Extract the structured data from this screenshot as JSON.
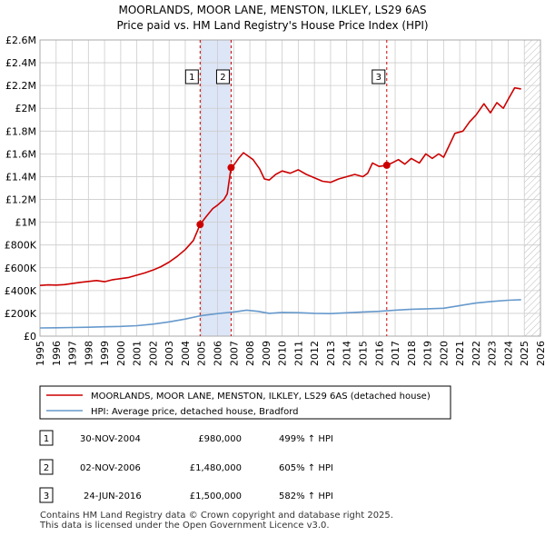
{
  "colors": {
    "property_line": "#cc0000",
    "hpi_line": "#6699cc",
    "highlight": "#dde6f7",
    "marker_line": "#cc0000",
    "grid": "#cccccc"
  },
  "chart_data": {
    "type": "line",
    "title": "MOORLANDS, MOOR LANE, MENSTON, ILKLEY, LS29 6AS",
    "subtitle": "Price paid vs. HM Land Registry's House Price Index (HPI)",
    "xlim": [
      1995,
      2026
    ],
    "ylim": [
      0,
      2600000
    ],
    "x_ticks": [
      "1995",
      "1996",
      "1997",
      "1998",
      "1999",
      "2000",
      "2001",
      "2002",
      "2003",
      "2004",
      "2005",
      "2006",
      "2007",
      "2008",
      "2009",
      "2010",
      "2011",
      "2012",
      "2013",
      "2014",
      "2015",
      "2016",
      "2017",
      "2018",
      "2019",
      "2020",
      "2021",
      "2022",
      "2023",
      "2024",
      "2025",
      "2026"
    ],
    "y_ticks": [
      {
        "value": 0,
        "label": "£0"
      },
      {
        "value": 200000,
        "label": "£200K"
      },
      {
        "value": 400000,
        "label": "£400K"
      },
      {
        "value": 600000,
        "label": "£600K"
      },
      {
        "value": 800000,
        "label": "£800K"
      },
      {
        "value": 1000000,
        "label": "£1M"
      },
      {
        "value": 1200000,
        "label": "£1.2M"
      },
      {
        "value": 1400000,
        "label": "£1.4M"
      },
      {
        "value": 1600000,
        "label": "£1.6M"
      },
      {
        "value": 1800000,
        "label": "£1.8M"
      },
      {
        "value": 2000000,
        "label": "£2M"
      },
      {
        "value": 2200000,
        "label": "£2.2M"
      },
      {
        "value": 2400000,
        "label": "£2.4M"
      },
      {
        "value": 2600000,
        "label": "£2.6M"
      }
    ],
    "highlight_ranges": [
      [
        2004.92,
        2006.84
      ]
    ],
    "projection_start": 2025.0,
    "series": [
      {
        "name": "MOORLANDS, MOOR LANE, MENSTON, ILKLEY, LS29 6AS (detached house)",
        "points": [
          [
            1995.0,
            445000
          ],
          [
            1995.5,
            450000
          ],
          [
            1996.0,
            448000
          ],
          [
            1996.5,
            452000
          ],
          [
            1997.0,
            462000
          ],
          [
            1997.5,
            472000
          ],
          [
            1998.0,
            480000
          ],
          [
            1998.5,
            488000
          ],
          [
            1999.0,
            478000
          ],
          [
            1999.5,
            495000
          ],
          [
            2000.0,
            505000
          ],
          [
            2000.5,
            515000
          ],
          [
            2001.0,
            535000
          ],
          [
            2001.5,
            555000
          ],
          [
            2002.0,
            580000
          ],
          [
            2002.5,
            610000
          ],
          [
            2003.0,
            650000
          ],
          [
            2003.5,
            700000
          ],
          [
            2004.0,
            760000
          ],
          [
            2004.5,
            840000
          ],
          [
            2004.92,
            980000
          ],
          [
            2005.3,
            1050000
          ],
          [
            2005.7,
            1120000
          ],
          [
            2006.0,
            1150000
          ],
          [
            2006.4,
            1200000
          ],
          [
            2006.6,
            1250000
          ],
          [
            2006.84,
            1480000
          ],
          [
            2007.0,
            1500000
          ],
          [
            2007.3,
            1560000
          ],
          [
            2007.6,
            1610000
          ],
          [
            2007.9,
            1580000
          ],
          [
            2008.2,
            1550000
          ],
          [
            2008.6,
            1470000
          ],
          [
            2008.9,
            1380000
          ],
          [
            2009.2,
            1370000
          ],
          [
            2009.6,
            1420000
          ],
          [
            2010.0,
            1450000
          ],
          [
            2010.5,
            1430000
          ],
          [
            2011.0,
            1460000
          ],
          [
            2011.5,
            1420000
          ],
          [
            2012.0,
            1390000
          ],
          [
            2012.5,
            1360000
          ],
          [
            2013.0,
            1350000
          ],
          [
            2013.5,
            1380000
          ],
          [
            2014.0,
            1400000
          ],
          [
            2014.5,
            1420000
          ],
          [
            2015.0,
            1400000
          ],
          [
            2015.3,
            1430000
          ],
          [
            2015.6,
            1520000
          ],
          [
            2016.0,
            1490000
          ],
          [
            2016.48,
            1500000
          ],
          [
            2016.8,
            1520000
          ],
          [
            2017.2,
            1550000
          ],
          [
            2017.6,
            1510000
          ],
          [
            2018.0,
            1560000
          ],
          [
            2018.5,
            1520000
          ],
          [
            2018.9,
            1600000
          ],
          [
            2019.3,
            1560000
          ],
          [
            2019.7,
            1600000
          ],
          [
            2020.0,
            1570000
          ],
          [
            2020.3,
            1660000
          ],
          [
            2020.7,
            1780000
          ],
          [
            2021.2,
            1800000
          ],
          [
            2021.6,
            1880000
          ],
          [
            2022.0,
            1940000
          ],
          [
            2022.5,
            2040000
          ],
          [
            2022.9,
            1960000
          ],
          [
            2023.3,
            2050000
          ],
          [
            2023.7,
            2000000
          ],
          [
            2024.0,
            2080000
          ],
          [
            2024.4,
            2180000
          ],
          [
            2024.8,
            2170000
          ]
        ]
      },
      {
        "name": "HPI: Average price, detached house, Bradford",
        "points": [
          [
            1995.0,
            72000
          ],
          [
            1996.0,
            73000
          ],
          [
            1997.0,
            76000
          ],
          [
            1998.0,
            78000
          ],
          [
            1999.0,
            82000
          ],
          [
            2000.0,
            85000
          ],
          [
            2001.0,
            92000
          ],
          [
            2002.0,
            105000
          ],
          [
            2003.0,
            125000
          ],
          [
            2004.0,
            150000
          ],
          [
            2005.0,
            180000
          ],
          [
            2006.0,
            198000
          ],
          [
            2007.0,
            212000
          ],
          [
            2007.8,
            228000
          ],
          [
            2008.5,
            218000
          ],
          [
            2009.2,
            200000
          ],
          [
            2010.0,
            208000
          ],
          [
            2011.0,
            206000
          ],
          [
            2012.0,
            200000
          ],
          [
            2013.0,
            198000
          ],
          [
            2014.0,
            205000
          ],
          [
            2015.0,
            212000
          ],
          [
            2016.0,
            218000
          ],
          [
            2017.0,
            228000
          ],
          [
            2018.0,
            236000
          ],
          [
            2019.0,
            240000
          ],
          [
            2020.0,
            245000
          ],
          [
            2021.0,
            268000
          ],
          [
            2022.0,
            290000
          ],
          [
            2023.0,
            305000
          ],
          [
            2024.0,
            315000
          ],
          [
            2024.8,
            320000
          ]
        ]
      }
    ],
    "sales": [
      {
        "num": "1",
        "x": 2004.92,
        "y": 980000,
        "date": "30-NOV-2004",
        "price": "£980,000",
        "hpi": "499% ↑ HPI"
      },
      {
        "num": "2",
        "x": 2006.84,
        "y": 1480000,
        "date": "02-NOV-2006",
        "price": "£1,480,000",
        "hpi": "605% ↑ HPI"
      },
      {
        "num": "3",
        "x": 2016.48,
        "y": 1500000,
        "date": "24-JUN-2016",
        "price": "£1,500,000",
        "hpi": "582% ↑ HPI"
      }
    ],
    "legend": [
      "MOORLANDS, MOOR LANE, MENSTON, ILKLEY, LS29 6AS (detached house)",
      "HPI: Average price, detached house, Bradford"
    ]
  },
  "footer": {
    "line1": "Contains HM Land Registry data © Crown copyright and database right 2025.",
    "line2": "This data is licensed under the Open Government Licence v3.0."
  }
}
